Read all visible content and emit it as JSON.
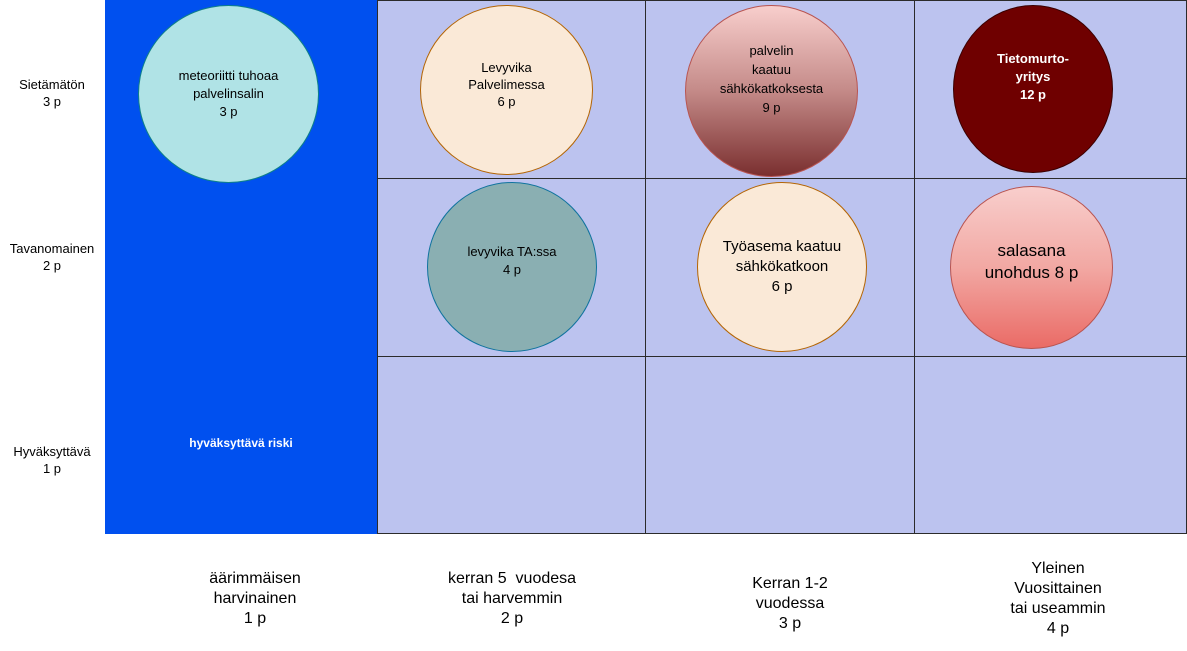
{
  "matrix": {
    "y_axis": [
      {
        "line1": "Sietämätön",
        "line2": "3 p"
      },
      {
        "line1": "Tavanomainen",
        "line2": "2 p"
      },
      {
        "line1": "Hyväksyttävä",
        "line2": "1 p"
      }
    ],
    "x_axis": [
      {
        "lines": [
          "äärimmäisen",
          "harvinainen",
          "1 p"
        ]
      },
      {
        "lines": [
          "kerran 5  vuodesa",
          "tai harvemmin",
          "2 p"
        ]
      },
      {
        "lines": [
          "Kerran 1-2",
          "vuodessa",
          "3 p"
        ]
      },
      {
        "lines": [
          "Yleinen",
          "Vuosittainen",
          "tai useammin",
          "4 p"
        ]
      }
    ],
    "acceptable_zone_label": "hyväksyttävä riski",
    "risks": [
      {
        "lines": [
          "meteoriitti tuhoaa",
          "palvelinsalin",
          "3 p"
        ]
      },
      {
        "lines": [
          "Levyvika",
          "Palvelimessa",
          "6 p"
        ]
      },
      {
        "lines": [
          "palvelin",
          "kaatuu",
          "sähkökatkoksesta",
          "9 p"
        ]
      },
      {
        "lines": [
          "Tietomurto-",
          "yritys",
          "12 p"
        ]
      },
      {
        "lines": [
          "levyvika TA:ssa",
          "4 p"
        ]
      },
      {
        "lines": [
          "Työasema kaatuu",
          "sähkökatkoon",
          "6 p"
        ]
      },
      {
        "lines": [
          "salasana",
          "unohdus 8 p"
        ]
      }
    ]
  },
  "colors": {
    "acceptable_zone": "#0050ef",
    "grid_cell": "#bcc3ef"
  }
}
